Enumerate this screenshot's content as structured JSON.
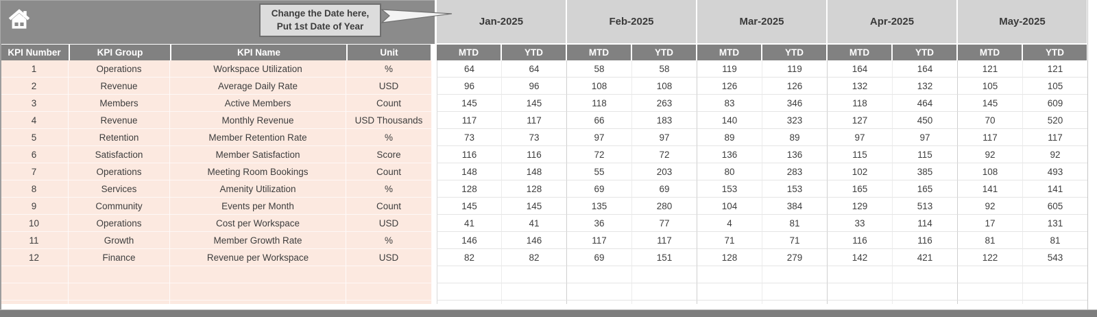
{
  "icons": {
    "home": "house glyph ⌂"
  },
  "callout": {
    "line1": "Change the Date here,",
    "line2": "Put 1st Date of Year"
  },
  "table": {
    "columns": [
      "KPI Number",
      "KPI Group",
      "KPI Name",
      "Unit"
    ],
    "months": [
      "Jan-2025",
      "Feb-2025",
      "Mar-2025",
      "Apr-2025",
      "May-2025"
    ],
    "subheaders": [
      "MTD",
      "YTD"
    ],
    "rows": [
      {
        "kpi_number": "1",
        "kpi_group": "Operations",
        "kpi_name": "Workspace Utilization",
        "unit": "%",
        "values": [
          64,
          64,
          58,
          58,
          119,
          119,
          164,
          164,
          121,
          121
        ]
      },
      {
        "kpi_number": "2",
        "kpi_group": "Revenue",
        "kpi_name": "Average Daily Rate",
        "unit": "USD",
        "values": [
          96,
          96,
          108,
          108,
          126,
          126,
          132,
          132,
          105,
          105
        ]
      },
      {
        "kpi_number": "3",
        "kpi_group": "Members",
        "kpi_name": "Active Members",
        "unit": "Count",
        "values": [
          145,
          145,
          118,
          263,
          83,
          346,
          118,
          464,
          145,
          609
        ]
      },
      {
        "kpi_number": "4",
        "kpi_group": "Revenue",
        "kpi_name": "Monthly Revenue",
        "unit": "USD Thousands",
        "values": [
          117,
          117,
          66,
          183,
          140,
          323,
          127,
          450,
          70,
          520
        ]
      },
      {
        "kpi_number": "5",
        "kpi_group": "Retention",
        "kpi_name": "Member Retention Rate",
        "unit": "%",
        "values": [
          73,
          73,
          97,
          97,
          89,
          89,
          97,
          97,
          117,
          117
        ]
      },
      {
        "kpi_number": "6",
        "kpi_group": "Satisfaction",
        "kpi_name": "Member Satisfaction",
        "unit": "Score",
        "values": [
          116,
          116,
          72,
          72,
          136,
          136,
          115,
          115,
          92,
          92
        ]
      },
      {
        "kpi_number": "7",
        "kpi_group": "Operations",
        "kpi_name": "Meeting Room Bookings",
        "unit": "Count",
        "values": [
          148,
          148,
          55,
          203,
          80,
          283,
          102,
          385,
          108,
          493
        ]
      },
      {
        "kpi_number": "8",
        "kpi_group": "Services",
        "kpi_name": "Amenity Utilization",
        "unit": "%",
        "values": [
          128,
          128,
          69,
          69,
          153,
          153,
          165,
          165,
          141,
          141
        ]
      },
      {
        "kpi_number": "9",
        "kpi_group": "Community",
        "kpi_name": "Events per Month",
        "unit": "Count",
        "values": [
          145,
          145,
          135,
          280,
          104,
          384,
          129,
          513,
          92,
          605
        ]
      },
      {
        "kpi_number": "10",
        "kpi_group": "Operations",
        "kpi_name": "Cost per Workspace",
        "unit": "USD",
        "values": [
          41,
          41,
          36,
          77,
          4,
          81,
          33,
          114,
          17,
          131
        ]
      },
      {
        "kpi_number": "11",
        "kpi_group": "Growth",
        "kpi_name": "Member Growth Rate",
        "unit": "%",
        "values": [
          146,
          146,
          117,
          117,
          71,
          71,
          116,
          116,
          81,
          81
        ]
      },
      {
        "kpi_number": "12",
        "kpi_group": "Finance",
        "kpi_name": "Revenue per Workspace",
        "unit": "USD",
        "values": [
          82,
          82,
          69,
          151,
          128,
          279,
          142,
          421,
          122,
          543
        ]
      }
    ],
    "empty_row_count": 2
  },
  "colors": {
    "band": "#8B8B8B",
    "header": "#818181",
    "month_header": "#D3D3D3",
    "row_pink": "#FCE9E0",
    "callout_bg": "#DCDCDC",
    "callout_border": "#6F6F6F",
    "bottom_bar": "#7D7D7D",
    "text_dark": "#3D3D3D",
    "grid_line": "#E4E4E4"
  }
}
